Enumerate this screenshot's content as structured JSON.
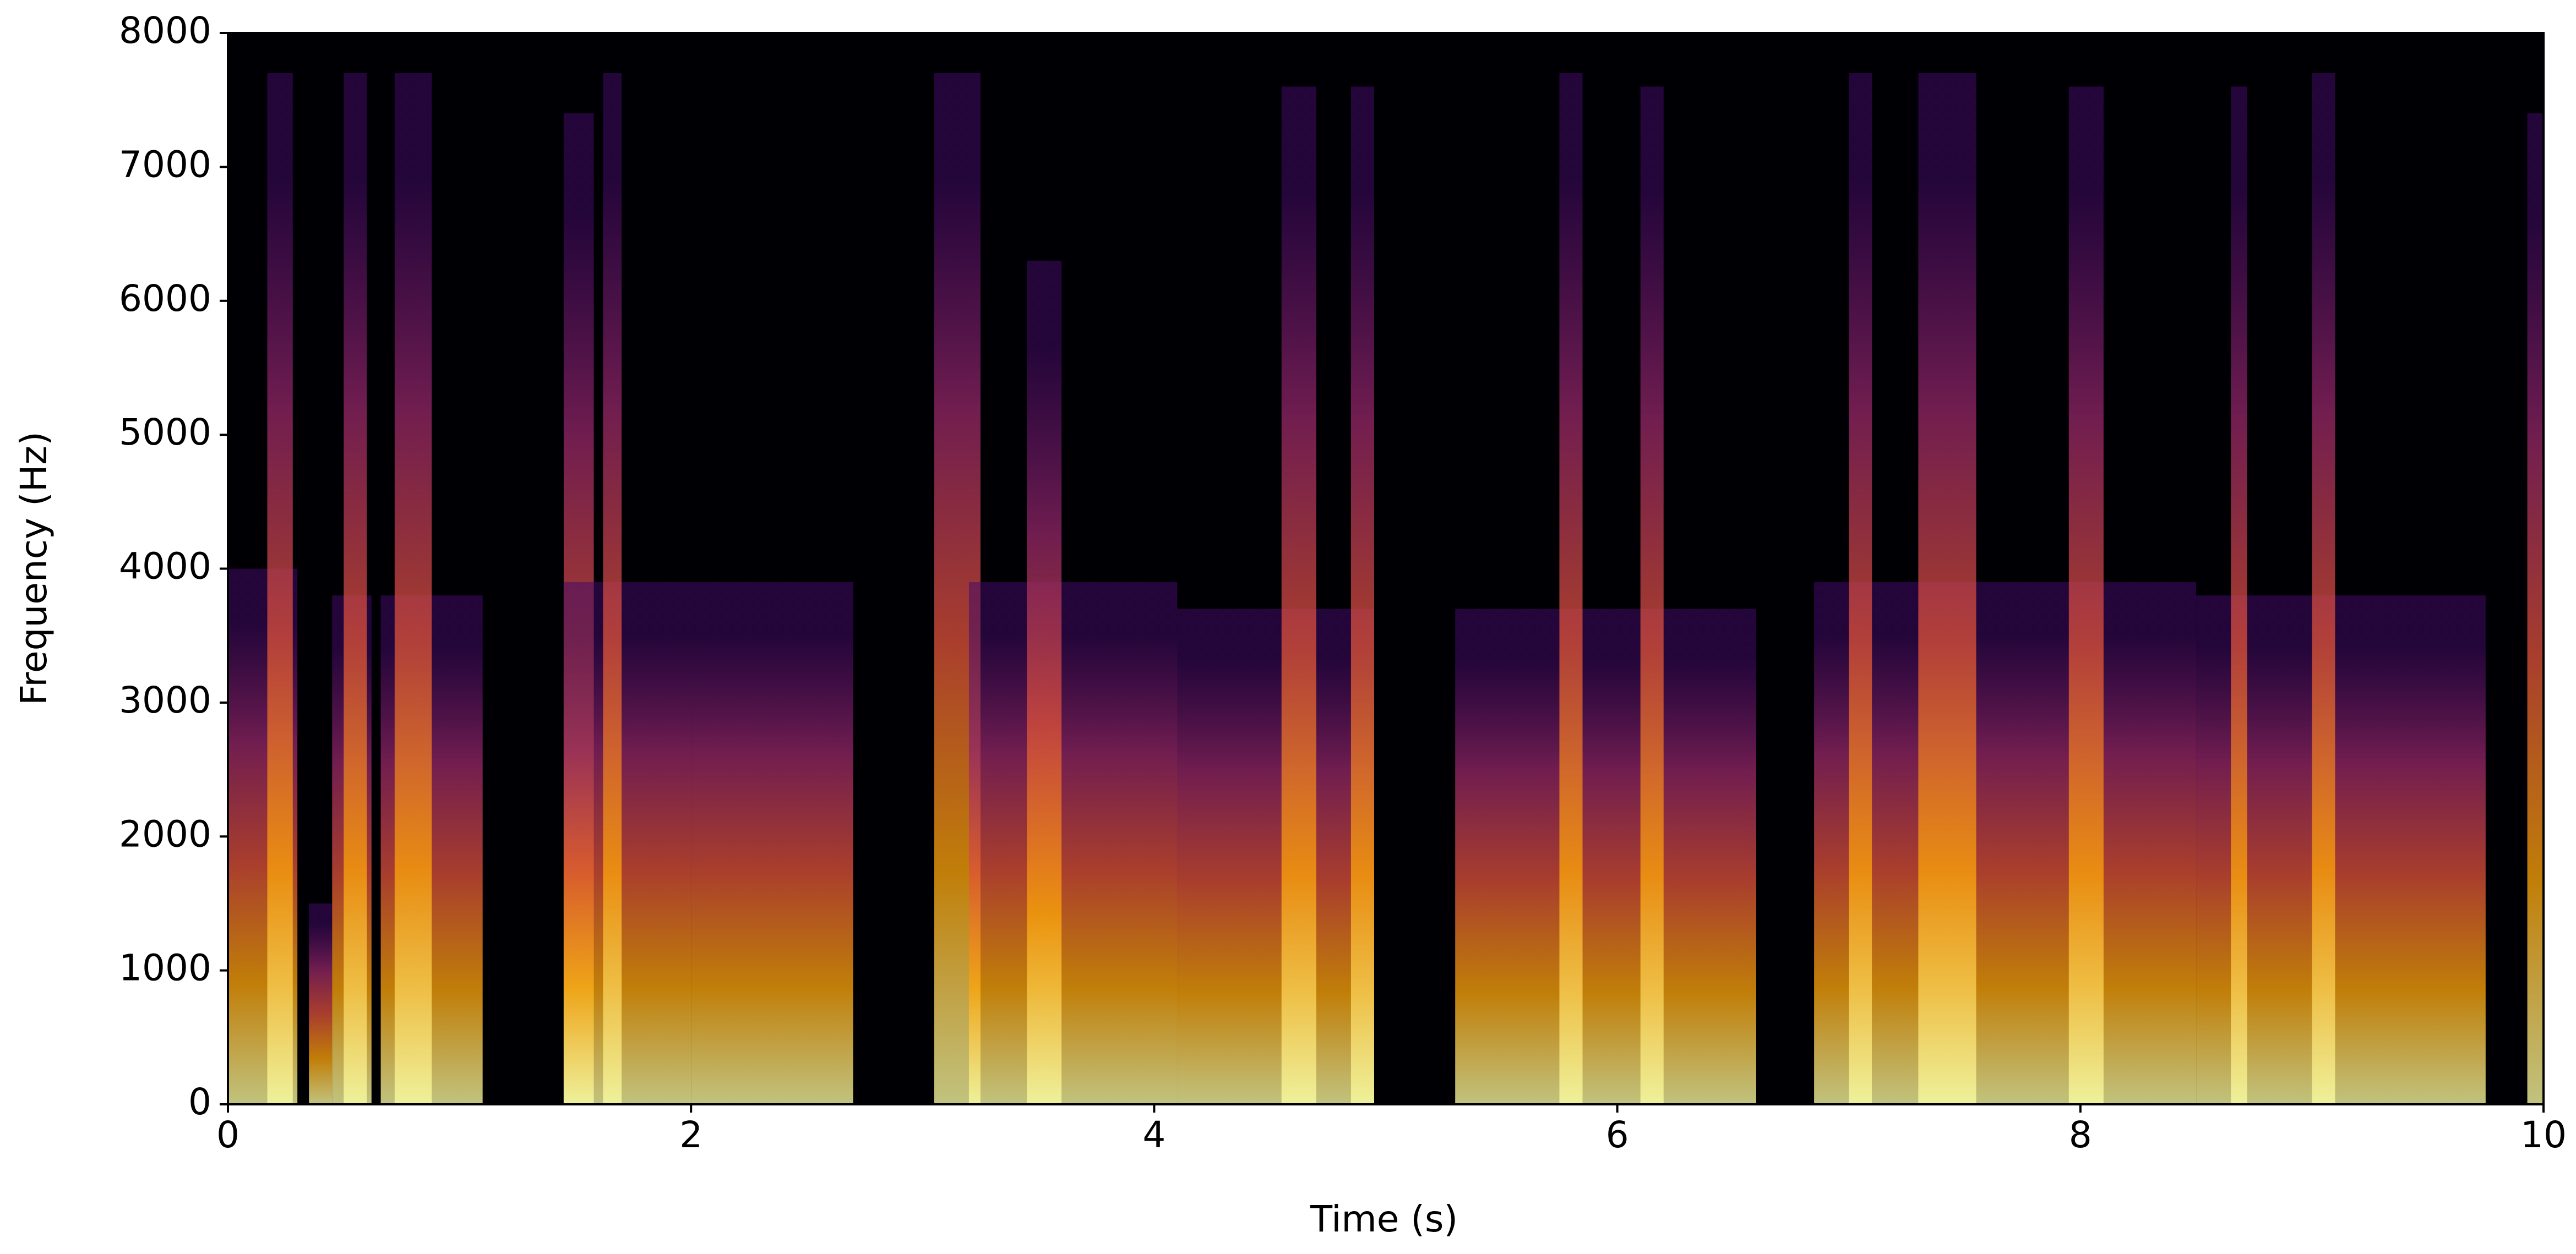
{
  "chart_data": {
    "type": "spectrogram",
    "xlabel": "Time (s)",
    "ylabel": "Frequency (Hz)",
    "xlim": [
      0,
      10
    ],
    "ylim": [
      0,
      8000
    ],
    "xticks": [
      0,
      2,
      4,
      6,
      8,
      10
    ],
    "yticks": [
      0,
      1000,
      2000,
      3000,
      4000,
      5000,
      6000,
      7000,
      8000
    ],
    "colormap": [
      "#000004",
      "#420a68",
      "#932667",
      "#dd513a",
      "#fca50a",
      "#fcffa4"
    ],
    "segments": [
      {
        "start": 0.0,
        "end": 0.3,
        "fmax": 4000
      },
      {
        "start": 0.17,
        "end": 0.28,
        "fmax": 7700
      },
      {
        "start": 0.35,
        "end": 0.45,
        "fmax": 1500
      },
      {
        "start": 0.45,
        "end": 0.62,
        "fmax": 3800
      },
      {
        "start": 0.5,
        "end": 0.6,
        "fmax": 7700
      },
      {
        "start": 0.66,
        "end": 1.1,
        "fmax": 3800
      },
      {
        "start": 0.72,
        "end": 0.88,
        "fmax": 7700
      },
      {
        "start": 1.45,
        "end": 1.58,
        "fmax": 7400
      },
      {
        "start": 1.45,
        "end": 2.0,
        "fmax": 3900
      },
      {
        "start": 1.62,
        "end": 1.7,
        "fmax": 7700
      },
      {
        "start": 2.0,
        "end": 2.7,
        "fmax": 3900
      },
      {
        "start": 3.05,
        "end": 3.25,
        "fmax": 7700
      },
      {
        "start": 3.2,
        "end": 4.1,
        "fmax": 3900
      },
      {
        "start": 3.45,
        "end": 3.6,
        "fmax": 6300
      },
      {
        "start": 4.1,
        "end": 4.95,
        "fmax": 3700
      },
      {
        "start": 4.55,
        "end": 4.7,
        "fmax": 7600
      },
      {
        "start": 4.85,
        "end": 4.95,
        "fmax": 7600
      },
      {
        "start": 5.3,
        "end": 6.6,
        "fmax": 3700
      },
      {
        "start": 5.75,
        "end": 5.85,
        "fmax": 7700
      },
      {
        "start": 6.1,
        "end": 6.2,
        "fmax": 7600
      },
      {
        "start": 6.85,
        "end": 7.1,
        "fmax": 3900
      },
      {
        "start": 7.0,
        "end": 7.1,
        "fmax": 7700
      },
      {
        "start": 7.1,
        "end": 8.5,
        "fmax": 3900
      },
      {
        "start": 7.3,
        "end": 7.55,
        "fmax": 7700
      },
      {
        "start": 7.95,
        "end": 8.1,
        "fmax": 7600
      },
      {
        "start": 8.5,
        "end": 9.75,
        "fmax": 3800
      },
      {
        "start": 8.65,
        "end": 8.72,
        "fmax": 7600
      },
      {
        "start": 9.0,
        "end": 9.1,
        "fmax": 7700
      },
      {
        "start": 9.93,
        "end": 10.0,
        "fmax": 7400
      }
    ]
  }
}
